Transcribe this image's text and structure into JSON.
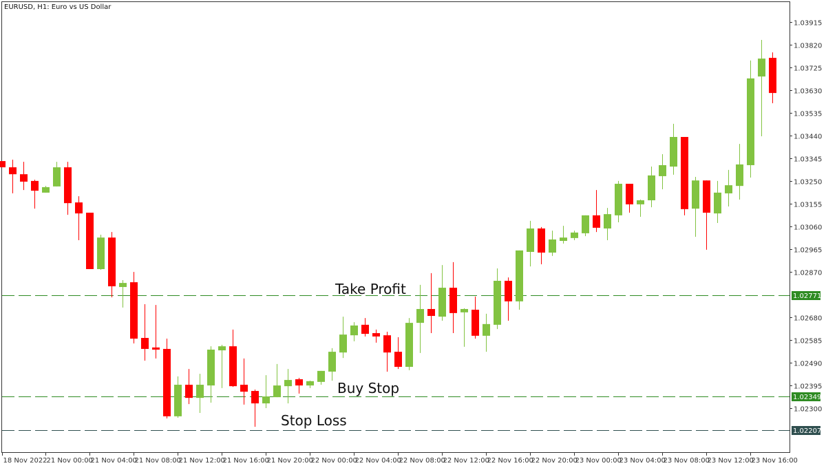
{
  "chart_data": {
    "type": "candlestick",
    "title": "EURUSD, H1:  Euro vs US Dollar",
    "colors": {
      "bull": "#82c341",
      "bear": "#ff0000",
      "take_profit": "#2e8b22",
      "buy_stop": "#2e8b22",
      "stop_loss": "#2f4f4f",
      "axis": "#333333"
    },
    "ylim": [
      1.0216,
      1.04
    ],
    "y_ticks": [
      "1.03915",
      "1.03820",
      "1.03725",
      "1.03630",
      "1.03535",
      "1.03440",
      "1.03345",
      "1.03250",
      "1.03155",
      "1.03060",
      "1.02965",
      "1.02870",
      "1.02680",
      "1.02585",
      "1.02490",
      "1.02395",
      "1.02300"
    ],
    "x_ticks": [
      {
        "label": "18 Nov 2022",
        "t": "18 Nov 20:00"
      },
      {
        "label": "21 Nov 00:00",
        "t": "21 Nov 00:00"
      },
      {
        "label": "21 Nov 04:00",
        "t": "21 Nov 04:00"
      },
      {
        "label": "21 Nov 08:00",
        "t": "21 Nov 08:00"
      },
      {
        "label": "21 Nov 12:00",
        "t": "21 Nov 12:00"
      },
      {
        "label": "21 Nov 16:00",
        "t": "21 Nov 16:00"
      },
      {
        "label": "21 Nov 20:00",
        "t": "21 Nov 20:00"
      },
      {
        "label": "22 Nov 00:00",
        "t": "22 Nov 00:00"
      },
      {
        "label": "22 Nov 04:00",
        "t": "22 Nov 04:00"
      },
      {
        "label": "22 Nov 08:00",
        "t": "22 Nov 08:00"
      },
      {
        "label": "22 Nov 12:00",
        "t": "22 Nov 12:00"
      },
      {
        "label": "22 Nov 16:00",
        "t": "22 Nov 16:00"
      },
      {
        "label": "22 Nov 20:00",
        "t": "22 Nov 20:00"
      },
      {
        "label": "23 Nov 00:00",
        "t": "23 Nov 00:00"
      },
      {
        "label": "23 Nov 04:00",
        "t": "23 Nov 04:00"
      },
      {
        "label": "23 Nov 08:00",
        "t": "23 Nov 08:00"
      },
      {
        "label": "23 Nov 12:00",
        "t": "23 Nov 12:00"
      },
      {
        "label": "23 Nov 16:00",
        "t": "23 Nov 16:00"
      }
    ],
    "levels": [
      {
        "name": "Take Profit",
        "price": 1.02771,
        "tag": "1.02771",
        "color_key": "take_profit"
      },
      {
        "name": "Buy Stop",
        "price": 1.02349,
        "tag": "1.02349",
        "color_key": "buy_stop"
      },
      {
        "name": "Stop Loss",
        "price": 1.02207,
        "tag": "1.02207",
        "color_key": "stop_loss"
      }
    ],
    "candles_columns": [
      "time",
      "open",
      "high",
      "low",
      "close"
    ],
    "candles": [
      [
        "18 Nov 20:00",
        1.03333,
        1.03333,
        1.03307,
        1.03307
      ],
      [
        "18 Nov 21:00",
        1.03307,
        1.03339,
        1.03198,
        1.03278
      ],
      [
        "18 Nov 22:00",
        1.03278,
        1.0333,
        1.03212,
        1.03247
      ],
      [
        "18 Nov 23:00",
        1.0325,
        1.03255,
        1.03134,
        1.03209
      ],
      [
        "21 Nov 00:00",
        1.03201,
        1.03229,
        1.03201,
        1.03224
      ],
      [
        "21 Nov 01:00",
        1.03227,
        1.0333,
        1.03227,
        1.03307
      ],
      [
        "21 Nov 02:00",
        1.03307,
        1.0333,
        1.03108,
        1.03157
      ],
      [
        "21 Nov 03:00",
        1.0316,
        1.03186,
        1.03002,
        1.03114
      ],
      [
        "21 Nov 04:00",
        1.03117,
        1.03117,
        1.02881,
        1.02881
      ],
      [
        "21 Nov 05:00",
        1.02881,
        1.03025,
        1.02878,
        1.03013
      ],
      [
        "21 Nov 06:00",
        1.03013,
        1.03036,
        1.02763,
        1.02809
      ],
      [
        "21 Nov 07:00",
        1.02806,
        1.02835,
        1.0272,
        1.02823
      ],
      [
        "21 Nov 08:00",
        1.02826,
        1.02869,
        1.0257,
        1.0259
      ],
      [
        "21 Nov 09:00",
        1.02593,
        1.02734,
        1.02498,
        1.02547
      ],
      [
        "21 Nov 10:00",
        1.02553,
        1.02731,
        1.02507,
        1.02544
      ],
      [
        "21 Nov 11:00",
        1.02547,
        1.0259,
        1.02256,
        1.02265
      ],
      [
        "21 Nov 12:00",
        1.02265,
        1.02432,
        1.02259,
        1.02397
      ],
      [
        "21 Nov 13:00",
        1.02397,
        1.02463,
        1.02316,
        1.02342
      ],
      [
        "21 Nov 14:00",
        1.02342,
        1.02443,
        1.02279,
        1.02397
      ],
      [
        "21 Nov 15:00",
        1.02394,
        1.02558,
        1.02322,
        1.02544
      ],
      [
        "21 Nov 16:00",
        1.02541,
        1.02564,
        1.02383,
        1.02558
      ],
      [
        "21 Nov 17:00",
        1.02558,
        1.02628,
        1.02388,
        1.02391
      ],
      [
        "21 Nov 18:00",
        1.02397,
        1.02507,
        1.02314,
        1.02368
      ],
      [
        "21 Nov 19:00",
        1.02371,
        1.02377,
        1.02221,
        1.02319
      ],
      [
        "21 Nov 20:00",
        1.02319,
        1.02437,
        1.02299,
        1.02348
      ],
      [
        "21 Nov 21:00",
        1.02345,
        1.02484,
        1.02345,
        1.02394
      ],
      [
        "21 Nov 22:00",
        1.02391,
        1.02463,
        1.02319,
        1.02417
      ],
      [
        "21 Nov 23:00",
        1.0242,
        1.02426,
        1.0236,
        1.02394
      ],
      [
        "22 Nov 00:00",
        1.02394,
        1.02414,
        1.02383,
        1.02412
      ],
      [
        "22 Nov 01:00",
        1.02409,
        1.02455,
        1.02397,
        1.02455
      ],
      [
        "22 Nov 02:00",
        1.02452,
        1.0255,
        1.02414,
        1.02535
      ],
      [
        "22 Nov 03:00",
        1.02532,
        1.02682,
        1.02509,
        1.02607
      ],
      [
        "22 Nov 04:00",
        1.02604,
        1.02659,
        1.02579,
        1.02645
      ],
      [
        "22 Nov 05:00",
        1.02648,
        1.02676,
        1.02599,
        1.0261
      ],
      [
        "22 Nov 06:00",
        1.02613,
        1.02628,
        1.02573,
        1.02599
      ],
      [
        "22 Nov 07:00",
        1.02604,
        1.02619,
        1.02452,
        1.02532
      ],
      [
        "22 Nov 08:00",
        1.02535,
        1.02596,
        1.02463,
        1.02472
      ],
      [
        "22 Nov 09:00",
        1.02472,
        1.02676,
        1.02458,
        1.02656
      ],
      [
        "22 Nov 10:00",
        1.02656,
        1.02815,
        1.0253,
        1.02714
      ],
      [
        "22 Nov 11:00",
        1.02714,
        1.02864,
        1.02613,
        1.02685
      ],
      [
        "22 Nov 12:00",
        1.02682,
        1.02898,
        1.02665,
        1.02803
      ],
      [
        "22 Nov 13:00",
        1.02803,
        1.0291,
        1.02613,
        1.02697
      ],
      [
        "22 Nov 14:00",
        1.027,
        1.02717,
        1.02556,
        1.02714
      ],
      [
        "22 Nov 15:00",
        1.02711,
        1.02766,
        1.0259,
        1.02602
      ],
      [
        "22 Nov 16:00",
        1.02602,
        1.02694,
        1.02535,
        1.02651
      ],
      [
        "22 Nov 17:00",
        1.02648,
        1.02884,
        1.0263,
        1.02832
      ],
      [
        "22 Nov 18:00",
        1.02832,
        1.02846,
        1.02665,
        1.02746
      ],
      [
        "22 Nov 19:00",
        1.02746,
        1.02959,
        1.02711,
        1.02959
      ],
      [
        "22 Nov 20:00",
        1.02953,
        1.03083,
        1.02892,
        1.03051
      ],
      [
        "22 Nov 21:00",
        1.03051,
        1.03057,
        1.02901,
        1.0295
      ],
      [
        "22 Nov 22:00",
        1.0295,
        1.03042,
        1.02936,
        1.03005
      ],
      [
        "22 Nov 23:00",
        1.02999,
        1.03062,
        1.02988,
        1.03013
      ],
      [
        "23 Nov 00:00",
        1.03011,
        1.03042,
        1.03002,
        1.03034
      ],
      [
        "23 Nov 01:00",
        1.03031,
        1.03106,
        1.03019,
        1.03106
      ],
      [
        "23 Nov 02:00",
        1.03106,
        1.03212,
        1.03036,
        1.03054
      ],
      [
        "23 Nov 03:00",
        1.03051,
        1.03137,
        1.03002,
        1.03111
      ],
      [
        "23 Nov 04:00",
        1.03106,
        1.0325,
        1.03077,
        1.03238
      ],
      [
        "23 Nov 05:00",
        1.03238,
        1.03238,
        1.03117,
        1.03152
      ],
      [
        "23 Nov 06:00",
        1.03152,
        1.03172,
        1.031,
        1.03169
      ],
      [
        "23 Nov 07:00",
        1.03169,
        1.0331,
        1.0314,
        1.03273
      ],
      [
        "23 Nov 08:00",
        1.0327,
        1.03362,
        1.03215,
        1.03316
      ],
      [
        "23 Nov 09:00",
        1.0331,
        1.03489,
        1.03276,
        1.03434
      ],
      [
        "23 Nov 10:00",
        1.03434,
        1.03434,
        1.03106,
        1.03132
      ],
      [
        "23 Nov 11:00",
        1.03134,
        1.03267,
        1.03016,
        1.03252
      ],
      [
        "23 Nov 12:00",
        1.03252,
        1.03252,
        1.02962,
        1.03117
      ],
      [
        "23 Nov 13:00",
        1.03114,
        1.0325,
        1.03074,
        1.03201
      ],
      [
        "23 Nov 14:00",
        1.03198,
        1.03296,
        1.03143,
        1.03232
      ],
      [
        "23 Nov 15:00",
        1.03229,
        1.03405,
        1.03172,
        1.03319
      ],
      [
        "23 Nov 16:00",
        1.03316,
        1.03754,
        1.03264,
        1.03679
      ],
      [
        "23 Nov 17:00",
        1.03687,
        1.0384,
        1.03437,
        1.03762
      ],
      [
        "23 Nov 18:00",
        1.03765,
        1.03788,
        1.03575,
        1.03618
      ]
    ]
  }
}
